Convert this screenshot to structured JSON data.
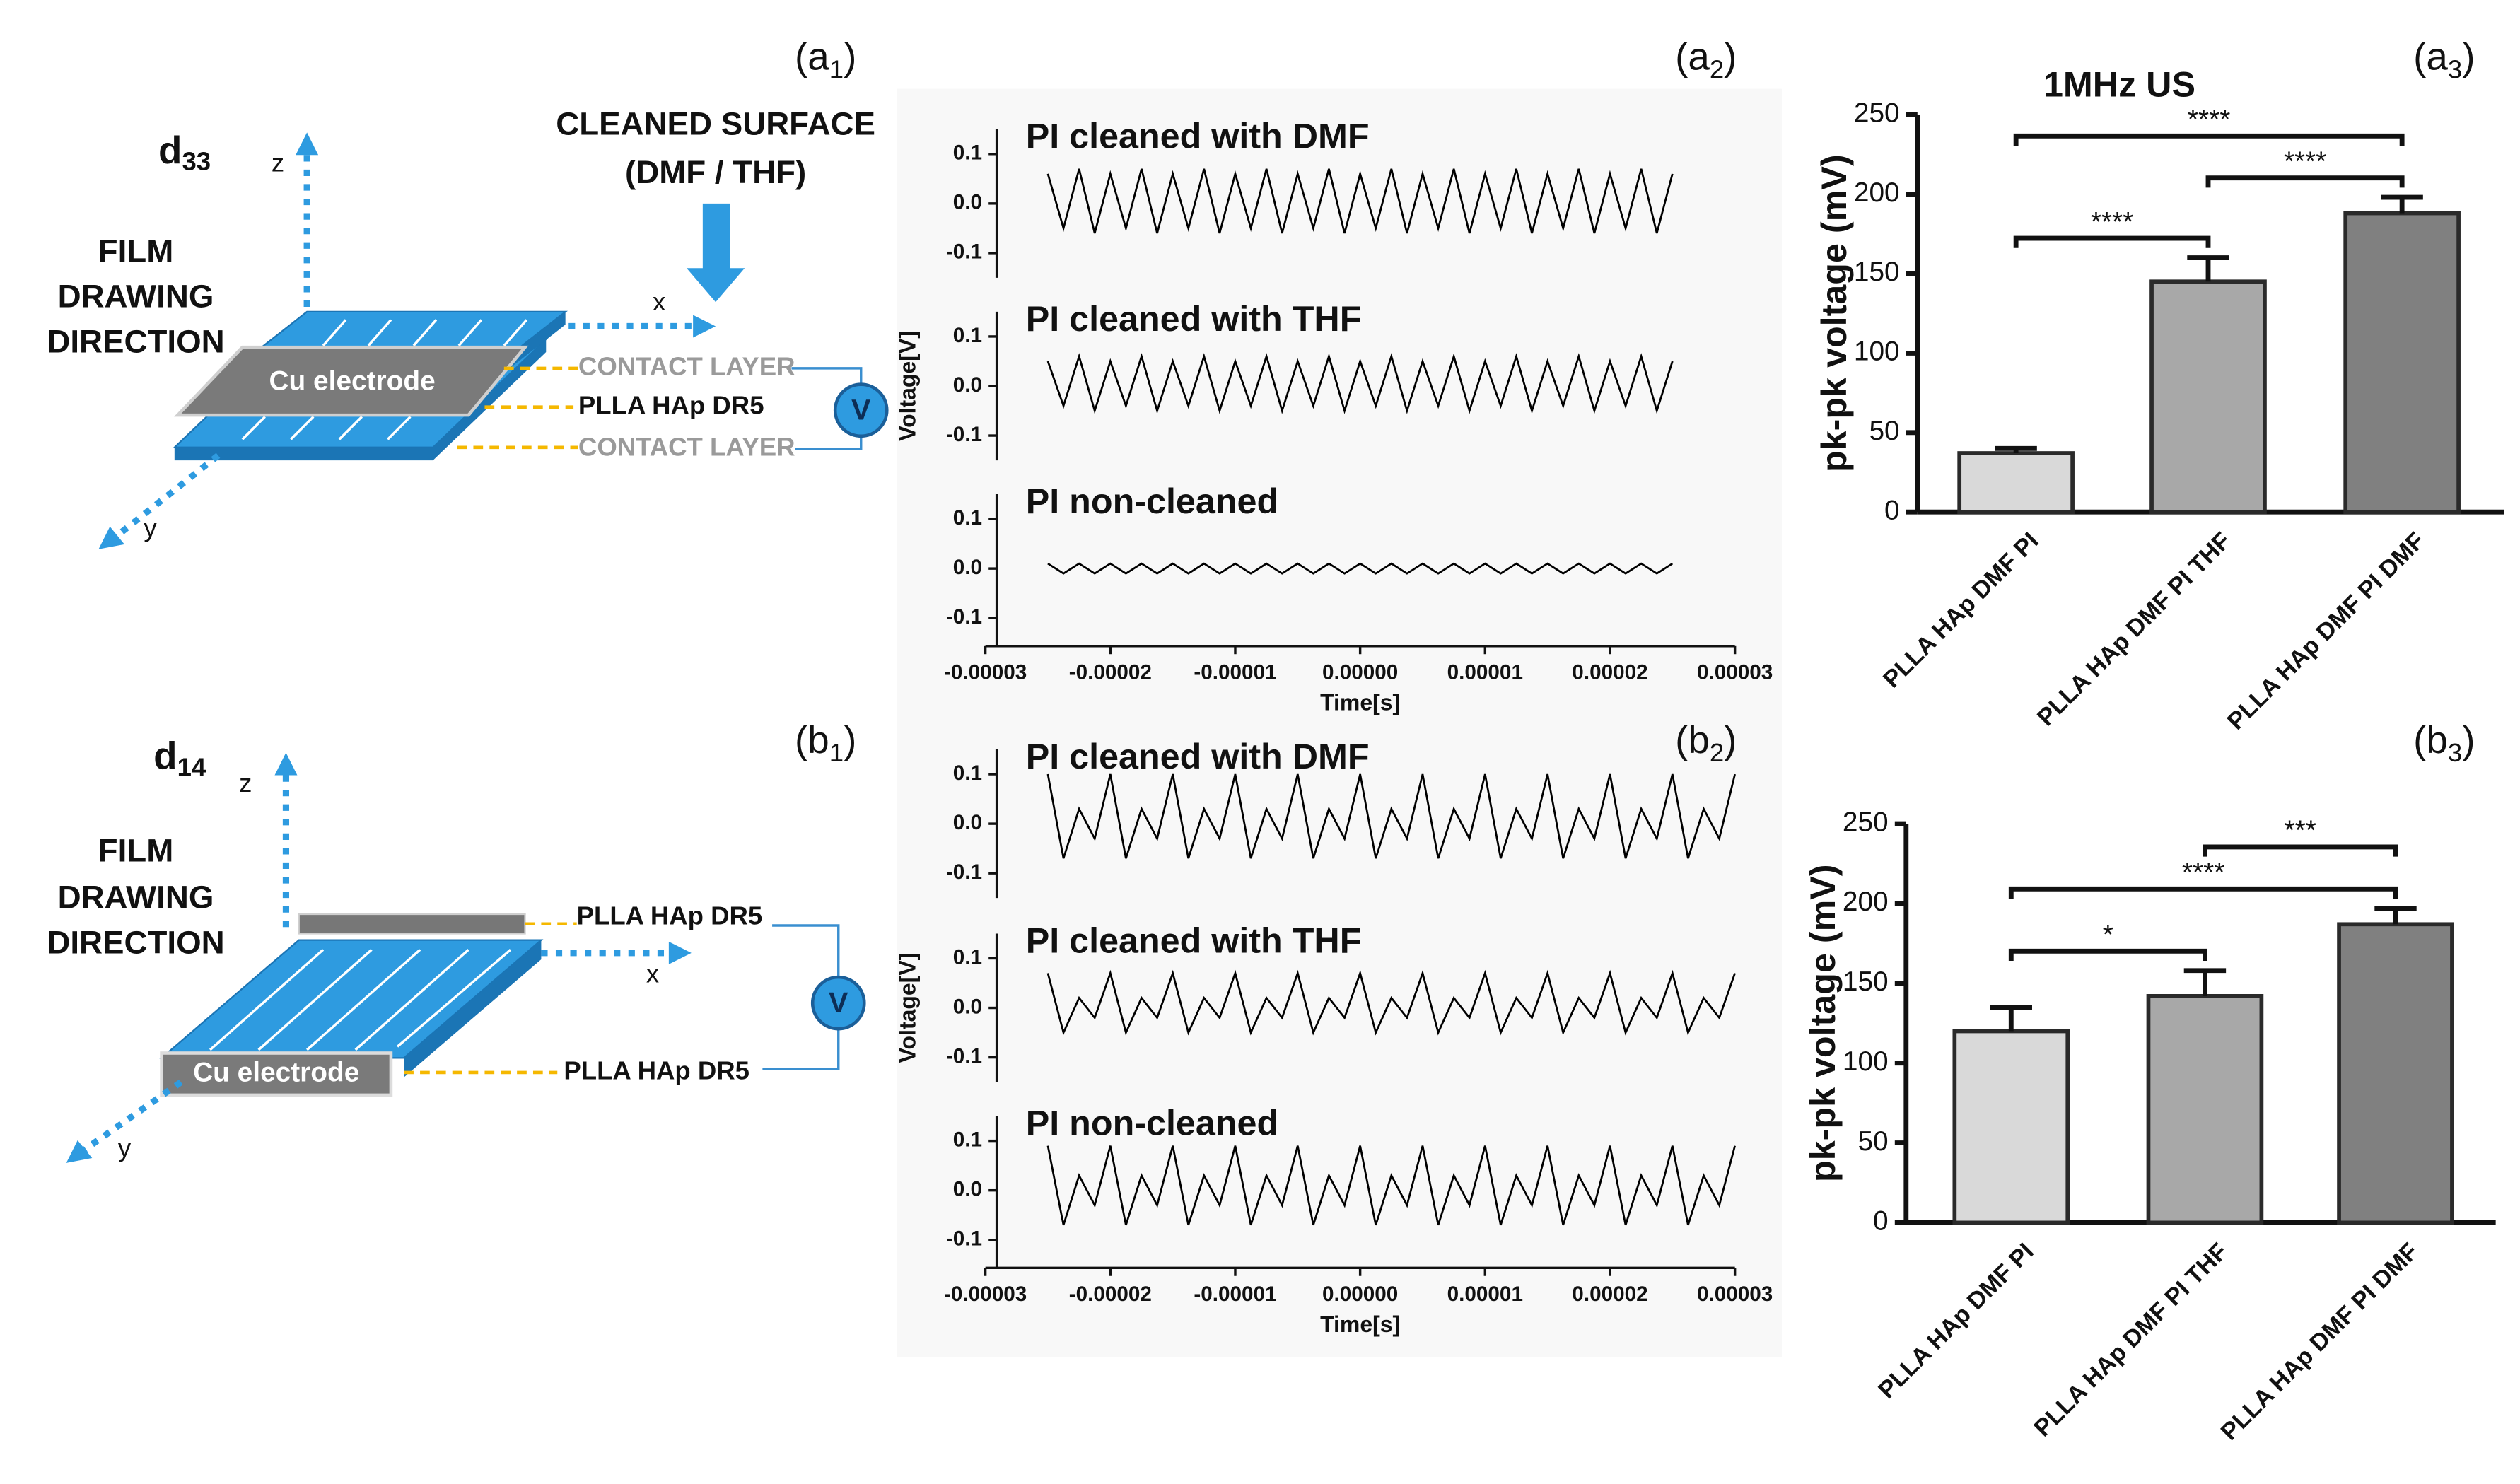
{
  "panels": [
    {
      "prefix": "(a",
      "sub": "1",
      "suffix": ")"
    },
    {
      "prefix": "(a",
      "sub": "2",
      "suffix": ")"
    },
    {
      "prefix": "(a",
      "sub": "3",
      "suffix": ")"
    },
    {
      "prefix": "(b",
      "sub": "1",
      "suffix": ")"
    },
    {
      "prefix": "(b",
      "sub": "2",
      "suffix": ")"
    },
    {
      "prefix": "(b",
      "sub": "3",
      "suffix": ")"
    }
  ],
  "diagrams": [
    {
      "mode": {
        "main": "d",
        "sub": "33"
      },
      "direction": [
        "FILM",
        "DRAWING",
        "DIRECTION"
      ],
      "surface": [
        "CLEANED SURFACE",
        "(DMF / THF)"
      ],
      "electrode": "Cu electrode",
      "layers": [
        "CONTACT LAYER",
        "PLLA HAp DR5",
        "CONTACT LAYER"
      ],
      "meter": "V",
      "axes": [
        "x",
        "y",
        "z"
      ]
    },
    {
      "mode": {
        "main": "d",
        "sub": "14"
      },
      "direction": [
        "FILM",
        "DRAWING",
        "DIRECTION"
      ],
      "electrode": "Cu electrode",
      "layers": [
        "PLLA HAp DR5",
        "PLLA HAp DR5"
      ],
      "meter": "V",
      "axes": [
        "x",
        "y",
        "z"
      ]
    }
  ],
  "chart_data": [
    {
      "type": "line",
      "title": "PI cleaned with DMF",
      "color": "#000000",
      "xlim": [
        -3e-05,
        3e-05
      ],
      "ylim": [
        -0.15,
        0.15
      ],
      "yticks": [
        0.1,
        {
          "value": 0,
          "label": "0.0"
        },
        -0.1
      ],
      "x": [
        -2.5e-05,
        -2.375e-05,
        -2.25e-05,
        -2.125e-05,
        -2e-05,
        -1.875e-05,
        -1.75e-05,
        -1.625e-05,
        -1.5e-05,
        -1.375e-05,
        -1.25e-05,
        -1.125e-05,
        -1e-05,
        -8.75e-06,
        -7.5e-06,
        -6.25e-06,
        -5e-06,
        -3.75e-06,
        -2.5e-06,
        -1.25e-06,
        0,
        1.25e-06,
        2.5e-06,
        3.75e-06,
        5e-06,
        6.25e-06,
        7.5e-06,
        8.75e-06,
        1e-05,
        1.125e-05,
        1.25e-05,
        1.375e-05,
        1.5e-05,
        1.625e-05,
        1.75e-05,
        1.875e-05,
        2e-05,
        2.125e-05,
        2.25e-05,
        2.375e-05,
        2.5e-05
      ],
      "values": [
        0.06,
        -0.05,
        0.07,
        -0.06,
        0.06,
        -0.05,
        0.07,
        -0.06,
        0.06,
        -0.05,
        0.07,
        -0.06,
        0.06,
        -0.05,
        0.07,
        -0.06,
        0.06,
        -0.05,
        0.07,
        -0.06,
        0.06,
        -0.05,
        0.07,
        -0.06,
        0.06,
        -0.05,
        0.07,
        -0.06,
        0.06,
        -0.05,
        0.07,
        -0.06,
        0.06,
        -0.05,
        0.07,
        -0.06,
        0.06,
        -0.05,
        0.07,
        -0.06,
        0.06
      ]
    },
    {
      "type": "line",
      "title": "PI cleaned with THF",
      "ylabel": "Voltage[V]",
      "color": "#000000",
      "xlim": [
        -3e-05,
        3e-05
      ],
      "ylim": [
        -0.15,
        0.15
      ],
      "yticks": [
        0.1,
        {
          "value": 0,
          "label": "0.0"
        },
        -0.1
      ],
      "x": [
        -2.5e-05,
        -2.375e-05,
        -2.25e-05,
        -2.125e-05,
        -2e-05,
        -1.875e-05,
        -1.75e-05,
        -1.625e-05,
        -1.5e-05,
        -1.375e-05,
        -1.25e-05,
        -1.125e-05,
        -1e-05,
        -8.75e-06,
        -7.5e-06,
        -6.25e-06,
        -5e-06,
        -3.75e-06,
        -2.5e-06,
        -1.25e-06,
        0,
        1.25e-06,
        2.5e-06,
        3.75e-06,
        5e-06,
        6.25e-06,
        7.5e-06,
        8.75e-06,
        1e-05,
        1.125e-05,
        1.25e-05,
        1.375e-05,
        1.5e-05,
        1.625e-05,
        1.75e-05,
        1.875e-05,
        2e-05,
        2.125e-05,
        2.25e-05,
        2.375e-05,
        2.5e-05
      ],
      "values": [
        0.05,
        -0.04,
        0.06,
        -0.05,
        0.05,
        -0.04,
        0.06,
        -0.05,
        0.05,
        -0.04,
        0.06,
        -0.05,
        0.05,
        -0.04,
        0.06,
        -0.05,
        0.05,
        -0.04,
        0.06,
        -0.05,
        0.05,
        -0.04,
        0.06,
        -0.05,
        0.05,
        -0.04,
        0.06,
        -0.05,
        0.05,
        -0.04,
        0.06,
        -0.05,
        0.05,
        -0.04,
        0.06,
        -0.05,
        0.05,
        -0.04,
        0.06,
        -0.05,
        0.05
      ]
    },
    {
      "type": "line",
      "title": "PI non-cleaned",
      "xlabel": "Time[s]",
      "color": "#000000",
      "xlim": [
        -3e-05,
        3e-05
      ],
      "ylim": [
        -0.15,
        0.15
      ],
      "yticks": [
        0.1,
        {
          "value": 0,
          "label": "0.0"
        },
        -0.1
      ],
      "xticks": [
        -3e-05,
        -2e-05,
        -1e-05,
        {
          "value": 0,
          "label": "0.00000"
        },
        1e-05,
        2e-05,
        3e-05
      ],
      "x": [
        -2.5e-05,
        -2.375e-05,
        -2.25e-05,
        -2.125e-05,
        -2e-05,
        -1.875e-05,
        -1.75e-05,
        -1.625e-05,
        -1.5e-05,
        -1.375e-05,
        -1.25e-05,
        -1.125e-05,
        -1e-05,
        -8.75e-06,
        -7.5e-06,
        -6.25e-06,
        -5e-06,
        -3.75e-06,
        -2.5e-06,
        -1.25e-06,
        0,
        1.25e-06,
        2.5e-06,
        3.75e-06,
        5e-06,
        6.25e-06,
        7.5e-06,
        8.75e-06,
        1e-05,
        1.125e-05,
        1.25e-05,
        1.375e-05,
        1.5e-05,
        1.625e-05,
        1.75e-05,
        1.875e-05,
        2e-05,
        2.125e-05,
        2.25e-05,
        2.375e-05,
        2.5e-05
      ],
      "values": [
        0.01,
        -0.01,
        0.01,
        -0.01,
        0.01,
        -0.01,
        0.01,
        -0.01,
        0.01,
        -0.01,
        0.01,
        -0.01,
        0.01,
        -0.01,
        0.01,
        -0.01,
        0.01,
        -0.01,
        0.01,
        -0.01,
        0.01,
        -0.01,
        0.01,
        -0.01,
        0.01,
        -0.01,
        0.01,
        -0.01,
        0.01,
        -0.01,
        0.01,
        -0.01,
        0.01,
        -0.01,
        0.01,
        -0.01,
        0.01,
        -0.01,
        0.01,
        -0.01,
        0.01
      ]
    },
    {
      "type": "line",
      "title": "PI cleaned with DMF",
      "color": "#000000",
      "xlim": [
        -3e-05,
        3e-05
      ],
      "ylim": [
        -0.15,
        0.15
      ],
      "yticks": [
        0.1,
        {
          "value": 0,
          "label": "0.0"
        },
        -0.1
      ],
      "x": [
        -2.5e-05,
        -2.375e-05,
        -2.25e-05,
        -2.125e-05,
        -2e-05,
        -1.875e-05,
        -1.75e-05,
        -1.625e-05,
        -1.5e-05,
        -1.375e-05,
        -1.25e-05,
        -1.125e-05,
        -1e-05,
        -8.75e-06,
        -7.5e-06,
        -6.25e-06,
        -5e-06,
        -3.75e-06,
        -2.5e-06,
        -1.25e-06,
        0,
        1.25e-06,
        2.5e-06,
        3.75e-06,
        5e-06,
        6.25e-06,
        7.5e-06,
        8.75e-06,
        1e-05,
        1.125e-05,
        1.25e-05,
        1.375e-05,
        1.5e-05,
        1.625e-05,
        1.75e-05,
        1.875e-05,
        2e-05,
        2.125e-05,
        2.25e-05,
        2.375e-05,
        2.5e-05,
        2.625e-05,
        2.75e-05,
        2.875e-05,
        3e-05
      ],
      "values": [
        0.1,
        -0.07,
        0.03,
        -0.03,
        0.1,
        -0.07,
        0.03,
        -0.03,
        0.1,
        -0.07,
        0.03,
        -0.03,
        0.1,
        -0.07,
        0.03,
        -0.03,
        0.1,
        -0.07,
        0.03,
        -0.03,
        0.1,
        -0.07,
        0.03,
        -0.03,
        0.1,
        -0.07,
        0.03,
        -0.03,
        0.1,
        -0.07,
        0.03,
        -0.03,
        0.1,
        -0.07,
        0.03,
        -0.03,
        0.1,
        -0.07,
        0.03,
        -0.03,
        0.1,
        -0.07,
        0.03,
        -0.03,
        0.1
      ]
    },
    {
      "type": "line",
      "title": "PI cleaned with THF",
      "ylabel": "Voltage[V]",
      "color": "#000000",
      "xlim": [
        -3e-05,
        3e-05
      ],
      "ylim": [
        -0.15,
        0.15
      ],
      "yticks": [
        0.1,
        {
          "value": 0,
          "label": "0.0"
        },
        -0.1
      ],
      "x": [
        -2.5e-05,
        -2.375e-05,
        -2.25e-05,
        -2.125e-05,
        -2e-05,
        -1.875e-05,
        -1.75e-05,
        -1.625e-05,
        -1.5e-05,
        -1.375e-05,
        -1.25e-05,
        -1.125e-05,
        -1e-05,
        -8.75e-06,
        -7.5e-06,
        -6.25e-06,
        -5e-06,
        -3.75e-06,
        -2.5e-06,
        -1.25e-06,
        0,
        1.25e-06,
        2.5e-06,
        3.75e-06,
        5e-06,
        6.25e-06,
        7.5e-06,
        8.75e-06,
        1e-05,
        1.125e-05,
        1.25e-05,
        1.375e-05,
        1.5e-05,
        1.625e-05,
        1.75e-05,
        1.875e-05,
        2e-05,
        2.125e-05,
        2.25e-05,
        2.375e-05,
        2.5e-05,
        2.625e-05,
        2.75e-05,
        2.875e-05,
        3e-05
      ],
      "values": [
        0.07,
        -0.05,
        0.02,
        -0.02,
        0.07,
        -0.05,
        0.02,
        -0.02,
        0.07,
        -0.05,
        0.02,
        -0.02,
        0.07,
        -0.05,
        0.02,
        -0.02,
        0.07,
        -0.05,
        0.02,
        -0.02,
        0.07,
        -0.05,
        0.02,
        -0.02,
        0.07,
        -0.05,
        0.02,
        -0.02,
        0.07,
        -0.05,
        0.02,
        -0.02,
        0.07,
        -0.05,
        0.02,
        -0.02,
        0.07,
        -0.05,
        0.02,
        -0.02,
        0.07,
        -0.05,
        0.02,
        -0.02,
        0.07
      ]
    },
    {
      "type": "line",
      "title": "PI non-cleaned",
      "xlabel": "Time[s]",
      "color": "#000000",
      "xlim": [
        -3e-05,
        3e-05
      ],
      "ylim": [
        -0.15,
        0.15
      ],
      "yticks": [
        0.1,
        {
          "value": 0,
          "label": "0.0"
        },
        -0.1
      ],
      "xticks": [
        -3e-05,
        -2e-05,
        -1e-05,
        {
          "value": 0,
          "label": "0.00000"
        },
        1e-05,
        2e-05,
        3e-05
      ],
      "x": [
        -2.5e-05,
        -2.375e-05,
        -2.25e-05,
        -2.125e-05,
        -2e-05,
        -1.875e-05,
        -1.75e-05,
        -1.625e-05,
        -1.5e-05,
        -1.375e-05,
        -1.25e-05,
        -1.125e-05,
        -1e-05,
        -8.75e-06,
        -7.5e-06,
        -6.25e-06,
        -5e-06,
        -3.75e-06,
        -2.5e-06,
        -1.25e-06,
        0,
        1.25e-06,
        2.5e-06,
        3.75e-06,
        5e-06,
        6.25e-06,
        7.5e-06,
        8.75e-06,
        1e-05,
        1.125e-05,
        1.25e-05,
        1.375e-05,
        1.5e-05,
        1.625e-05,
        1.75e-05,
        1.875e-05,
        2e-05,
        2.125e-05,
        2.25e-05,
        2.375e-05,
        2.5e-05,
        2.625e-05,
        2.75e-05,
        2.875e-05,
        3e-05
      ],
      "values": [
        0.09,
        -0.07,
        0.03,
        -0.03,
        0.09,
        -0.07,
        0.03,
        -0.03,
        0.09,
        -0.07,
        0.03,
        -0.03,
        0.09,
        -0.07,
        0.03,
        -0.03,
        0.09,
        -0.07,
        0.03,
        -0.03,
        0.09,
        -0.07,
        0.03,
        -0.03,
        0.09,
        -0.07,
        0.03,
        -0.03,
        0.09,
        -0.07,
        0.03,
        -0.03,
        0.09,
        -0.07,
        0.03,
        -0.03,
        0.09,
        -0.07,
        0.03,
        -0.03,
        0.09,
        -0.07,
        0.03,
        -0.03,
        0.09
      ]
    },
    {
      "type": "bar",
      "title": "1MHz US",
      "ylabel": "pk-pk voltage (mV)",
      "categories": [
        "PLLA HAp DMF PI",
        "PLLA HAp DMF PI THF",
        "PLLA HAp DMF PI DMF"
      ],
      "values": [
        37,
        145,
        188
      ],
      "errors": [
        3,
        15,
        10
      ],
      "colors": [
        "#d9d9d9",
        "#a8a8a8",
        "#808080"
      ],
      "ylim": [
        0,
        250
      ],
      "yticks": [
        0,
        50,
        100,
        150,
        200,
        250
      ],
      "annotations": [
        {
          "text": "****",
          "between": [
            "PLLA HAp DMF PI",
            "PLLA HAp DMF PI THF"
          ]
        },
        {
          "text": "****",
          "between": [
            "PLLA HAp DMF PI THF",
            "PLLA HAp DMF PI DMF"
          ]
        },
        {
          "text": "****",
          "between": [
            "PLLA HAp DMF PI",
            "PLLA HAp DMF PI DMF"
          ]
        }
      ]
    },
    {
      "type": "bar",
      "ylabel": "pk-pk voltage (mV)",
      "categories": [
        "PLLA HAp DMF PI",
        "PLLA HAp DMF PI THF",
        "PLLA HAp DMF PI DMF"
      ],
      "values": [
        120,
        142,
        187
      ],
      "errors": [
        15,
        16,
        10
      ],
      "colors": [
        "#d9d9d9",
        "#a8a8a8",
        "#808080"
      ],
      "ylim": [
        0,
        250
      ],
      "yticks": [
        0,
        50,
        100,
        150,
        200,
        250
      ],
      "annotations": [
        {
          "text": "*",
          "between": [
            "PLLA HAp DMF PI",
            "PLLA HAp DMF PI THF"
          ]
        },
        {
          "text": "****",
          "between": [
            "PLLA HAp DMF PI",
            "PLLA HAp DMF PI DMF"
          ]
        },
        {
          "text": "***",
          "between": [
            "PLLA HAp DMF PI THF",
            "PLLA HAp DMF PI DMF"
          ]
        }
      ]
    }
  ]
}
